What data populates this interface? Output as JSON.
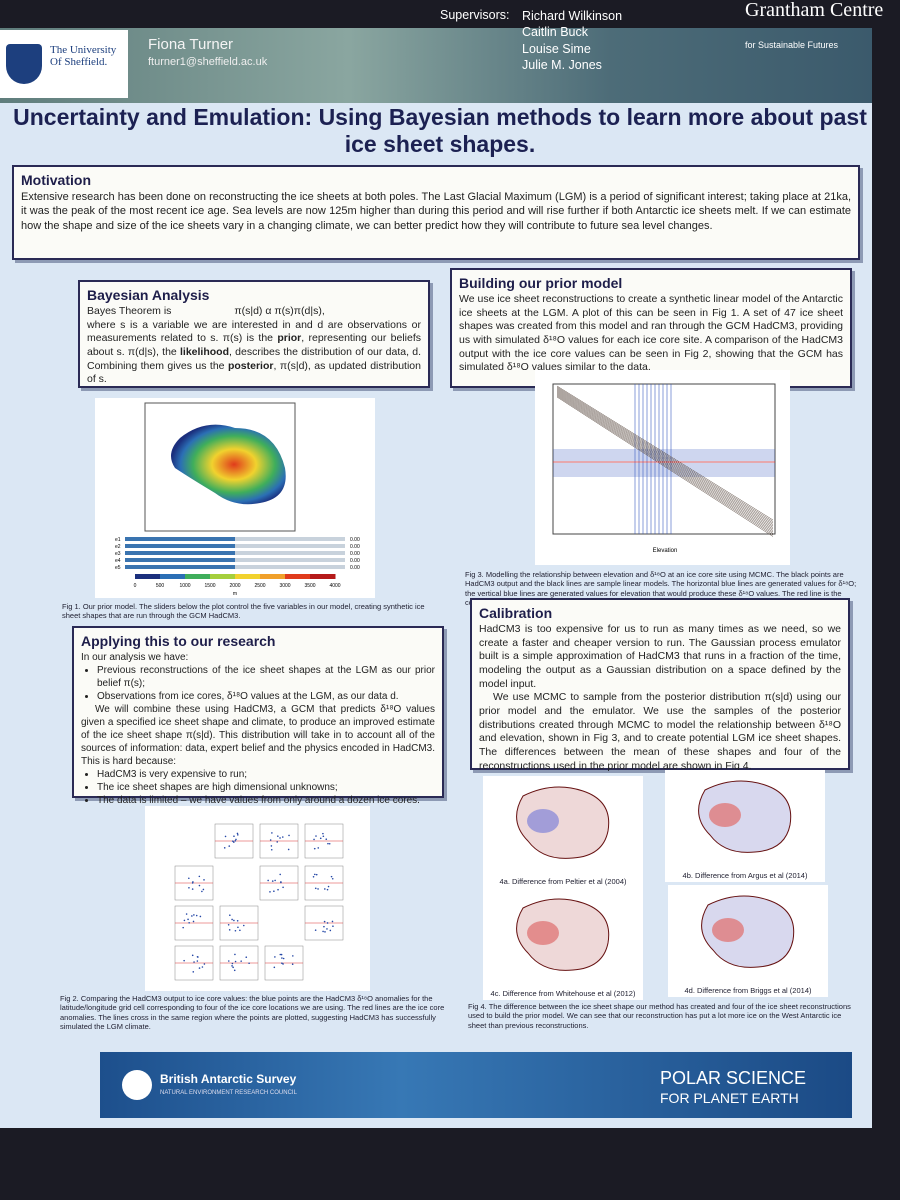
{
  "header": {
    "university": "The University Of Sheffield.",
    "author": "Fiona Turner",
    "email": "fturner1@sheffield.ac.uk",
    "supervisors_label": "Supervisors:",
    "supervisors": [
      "Richard Wilkinson",
      "Caitlin Buck",
      "Louise Sime",
      "Julie M. Jones"
    ],
    "centre": "Grantham Centre",
    "centre_sub": "for Sustainable Futures"
  },
  "title": "Uncertainty and Emulation: Using Bayesian methods to learn more about past ice sheet shapes.",
  "motivation": {
    "heading": "Motivation",
    "text": "Extensive research has been done on reconstructing the ice sheets at both poles. The Last Glacial Maximum (LGM) is a period of significant interest; taking place at 21ka, it was the peak of the most recent ice age. Sea levels are now 125m higher than during this period and will rise further if both Antarctic ice sheets melt. If we can estimate how the shape and size of the ice sheets vary in a changing climate, we can better predict how they will contribute to future sea level changes."
  },
  "bayesian": {
    "heading": "Bayesian Analysis",
    "intro": "Bayes Theorem is",
    "formula": "π(s|d) α π(s)π(d|s),",
    "runs": [
      "where s is a variable we are interested in and d are observations or measurements related to s. π(s) is the ",
      "prior",
      ", representing our beliefs about s. π(d|s), the ",
      "likelihood",
      ", describes the distribution of our data, d. Combining them gives us the ",
      "posterior",
      ", π(s|d), as updated distribution of s."
    ]
  },
  "fig1": {
    "sliders": [
      "e1",
      "e2",
      "e3",
      "e4",
      "e5"
    ],
    "slider_values": [
      "0.00",
      "0.00",
      "0.00",
      "0.00",
      "0.00"
    ],
    "colorbar_ticks": [
      0,
      500,
      1000,
      1500,
      2000,
      2500,
      3000,
      3500,
      4000
    ],
    "unit": "m",
    "caption": "Fig 1. Our prior model. The sliders below the plot control the five variables in our model, creating synthetic ice sheet shapes that are run through the GCM HadCM3."
  },
  "applying": {
    "heading": "Applying this to our research",
    "intro": "In our analysis we have:",
    "bullets": [
      "Previous reconstructions of the ice sheet shapes at the LGM as our prior belief π(s);",
      "Observations from ice cores, δ¹⁸O values at the LGM, as our data d."
    ],
    "paragraph": "We will combine these using HadCM3, a GCM that predicts δ¹⁸O values given a specified ice sheet shape and climate, to produce an improved estimate of the ice sheet shape π(s|d). This distribution will take in to account all of the sources of information: data, expert belief and the physics encoded in HadCM3. This is hard because:",
    "bullets2": [
      "HadCM3 is very expensive to run;",
      "The ice sheet shapes are high dimensional unknowns;",
      "The data is limited – we have values from only around a dozen ice cores."
    ]
  },
  "fig2": {
    "caption": "Fig 2. Comparing the HadCM3 output to ice core values: the blue points are the HadCM3 δ¹⁸O anomalies for the latitude/longitude grid cell corresponding to four of the ice core locations we are using. The red lines are the ice core anomalies. The lines cross in the same region where the points are plotted, suggesting HadCM3 has successfully simulated the LGM climate."
  },
  "building": {
    "heading": "Building our prior model",
    "text": "We use ice sheet reconstructions to create a synthetic linear model of the Antarctic ice sheets at the LGM. A plot of this can be seen in Fig 1. A set of 47 ice sheet shapes was created from this model and ran through the GCM HadCM3, providing us with simulated δ¹⁸O values for each ice core site. A comparison of the HadCM3 output with the ice core values can be seen in Fig 2, showing that the GCM has simulated δ¹⁸O values similar to the data."
  },
  "fig3": {
    "x_label": "Elevation",
    "caption": "Fig 3. Modelling the relationship between elevation and δ¹⁸O at an ice core site using MCMC. The black points are HadCM3 output and the black lines are sample linear models. The horizontal blue lines are generated values for δ¹⁸O; the vertical blue lines are generated values for elevation that would produce these δ¹⁸O values. The red line is the corresponding ice core value."
  },
  "calibration": {
    "heading": "Calibration",
    "p1": "HadCM3 is too expensive for us to run as many times as we need, so we create a faster and cheaper version to run. The Gaussian process emulator built is a simple approximation of HadCM3 that runs in a fraction of the time, modeling the output as a Gaussian distribution on a space defined by the model input.",
    "p2": "We use MCMC to sample from the posterior distribution π(s|d) using our prior model and the emulator. We use the samples of the posterior distributions created through MCMC to model the relationship between δ¹⁸O and elevation, shown in Fig 3, and to create potential LGM ice sheet shapes. The differences between the mean of these shapes and four of the reconstructions used in the prior model are shown in Fig 4."
  },
  "fig4": {
    "panels": [
      "4a. Difference from Peltier et al (2004)",
      "4b. Difference from Argus et al (2014)",
      "4c. Difference from Whitehouse et al (2012)",
      "4d. Difference from Briggs et al (2014)"
    ],
    "caption": "Fig 4. The difference between the ice sheet shape our method has created and four of the ice sheet reconstructions used to build the prior model. We can see that our reconstruction has put a lot more ice on the West Antarctic ice sheet than previous reconstructions."
  },
  "footer": {
    "bas": "British Antarctic Survey",
    "nerc": "NATURAL ENVIRONMENT RESEARCH COUNCIL",
    "polar1": "POLAR SCIENCE",
    "polar2": "FOR PLANET EARTH"
  }
}
